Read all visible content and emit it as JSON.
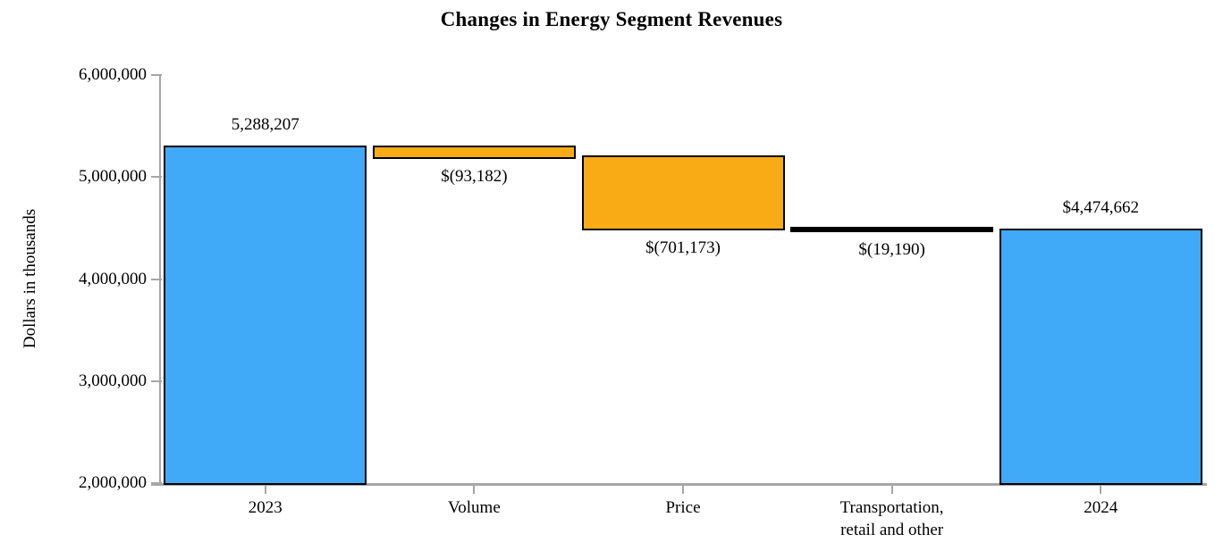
{
  "chart_data": {
    "type": "bar",
    "subtype": "waterfall",
    "title": "Changes in Energy Segment Revenues",
    "xlabel": "",
    "ylabel": "Dollars in thousands",
    "ylim": [
      2000000,
      6000000
    ],
    "grid": false,
    "legend": false,
    "yticks": [
      {
        "value": 6000000,
        "label": "6,000,000"
      },
      {
        "value": 5000000,
        "label": "5,000,000"
      },
      {
        "value": 4000000,
        "label": "4,000,000"
      },
      {
        "value": 3000000,
        "label": "3,000,000"
      },
      {
        "value": 2000000,
        "label": "2,000,000"
      }
    ],
    "categories": [
      "2023",
      "Volume",
      "Price",
      "Transportation, retail and other",
      "2024"
    ],
    "bars": [
      {
        "category": "2023",
        "category_lines": [
          "2023"
        ],
        "role": "total",
        "value": 5288207,
        "value_label": "5,288,207",
        "label_position": "above",
        "y_from": 2000000,
        "y_to": 5288207
      },
      {
        "category": "Volume",
        "category_lines": [
          "Volume"
        ],
        "role": "decrease",
        "value": -93182,
        "value_label": "$(93,182)",
        "label_position": "below",
        "y_from": 5288207,
        "y_to": 5195025
      },
      {
        "category": "Price",
        "category_lines": [
          "Price"
        ],
        "role": "decrease",
        "value": -701173,
        "value_label": "$(701,173)",
        "label_position": "below",
        "y_from": 5195025,
        "y_to": 4493852
      },
      {
        "category": "Transportation, retail and other",
        "category_lines": [
          "Transportation,",
          "retail and other"
        ],
        "role": "decrease_small",
        "value": -19190,
        "value_label": "$(19,190)",
        "label_position": "below",
        "y_from": 4493852,
        "y_to": 4474662
      },
      {
        "category": "2024",
        "category_lines": [
          "2024"
        ],
        "role": "total",
        "value": 4474662,
        "value_label": "$4,474,662",
        "label_position": "above",
        "y_from": 2000000,
        "y_to": 4474662
      }
    ],
    "colors": {
      "total": "#40aaf8",
      "decrease": "#f8ab15",
      "decrease_small": "#000000",
      "bar_border": "#000000",
      "axis": "#a6a6a6"
    }
  }
}
